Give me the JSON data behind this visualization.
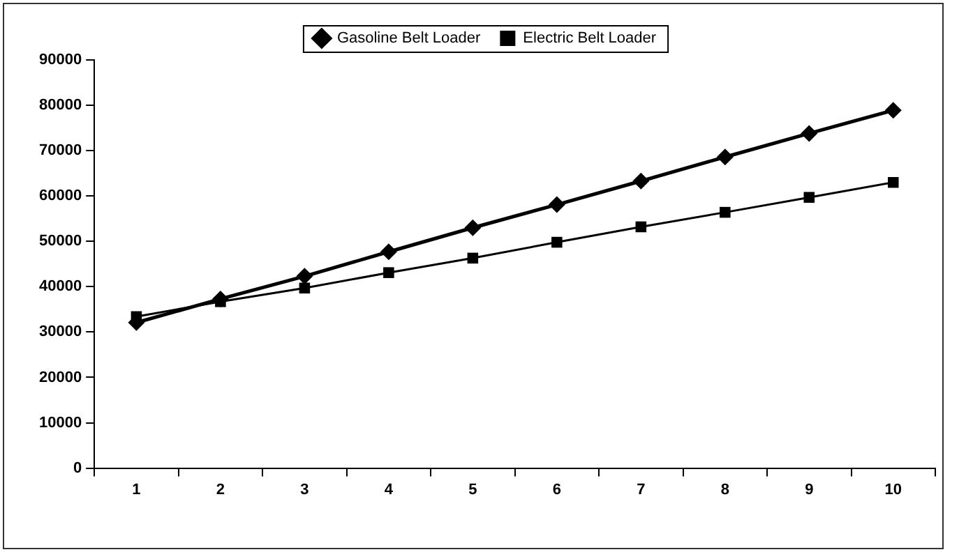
{
  "chart_data": {
    "type": "line",
    "categories": [
      "1",
      "2",
      "3",
      "4",
      "5",
      "6",
      "7",
      "8",
      "9",
      "10"
    ],
    "series": [
      {
        "name": "Gasoline Belt Loader",
        "color": "#000000",
        "marker": "diamond",
        "values": [
          32100,
          37300,
          42300,
          47700,
          53000,
          58100,
          63300,
          68600,
          73800,
          78900
        ]
      },
      {
        "name": "Electric Belt Loader",
        "color": "#000000",
        "marker": "square",
        "values": [
          33400,
          36700,
          39700,
          43100,
          46300,
          49800,
          53200,
          56400,
          59700,
          63000
        ]
      }
    ],
    "ylim": [
      0,
      90000
    ],
    "yticks": [
      0,
      10000,
      20000,
      30000,
      40000,
      50000,
      60000,
      70000,
      80000,
      90000
    ],
    "grid": false,
    "legend": "top",
    "line_style": "solid"
  }
}
